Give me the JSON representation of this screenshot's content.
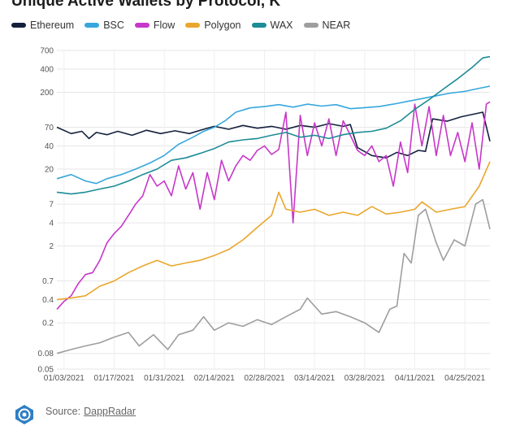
{
  "header": {
    "title": "Unique Active Wallets by Protocol, K"
  },
  "footer": {
    "source_label": "Source:",
    "source_name": "DappRadar"
  },
  "chart_data": {
    "type": "line",
    "title": "Unique Active Wallets by Protocol, K",
    "xlabel": "",
    "ylabel": "",
    "y_scale": "log",
    "ylim": [
      0.05,
      700
    ],
    "y_ticks": [
      700,
      400,
      200,
      70,
      40,
      20,
      7,
      4,
      2,
      0.7,
      0.4,
      0.2,
      0.08,
      0.05
    ],
    "x_tick_labels": [
      "01/03/2021",
      "01/17/2021",
      "01/31/2021",
      "02/14/2021",
      "02/28/2021",
      "03/14/2021",
      "03/28/2021",
      "04/11/2021",
      "04/25/2021"
    ],
    "x_start": "2021-01-01",
    "x_end": "2021-05-02",
    "grid": true,
    "legend_position": "top-left",
    "series": [
      {
        "name": "Ethereum",
        "color": "#14213d",
        "points": [
          [
            "2021-01-01",
            70
          ],
          [
            "2021-01-05",
            58
          ],
          [
            "2021-01-08",
            62
          ],
          [
            "2021-01-10",
            50
          ],
          [
            "2021-01-12",
            60
          ],
          [
            "2021-01-15",
            56
          ],
          [
            "2021-01-18",
            62
          ],
          [
            "2021-01-22",
            55
          ],
          [
            "2021-01-26",
            64
          ],
          [
            "2021-01-30",
            58
          ],
          [
            "2021-02-03",
            63
          ],
          [
            "2021-02-07",
            58
          ],
          [
            "2021-02-11",
            66
          ],
          [
            "2021-02-14",
            72
          ],
          [
            "2021-02-18",
            66
          ],
          [
            "2021-02-22",
            74
          ],
          [
            "2021-02-26",
            68
          ],
          [
            "2021-03-02",
            72
          ],
          [
            "2021-03-06",
            66
          ],
          [
            "2021-03-10",
            74
          ],
          [
            "2021-03-14",
            70
          ],
          [
            "2021-03-18",
            78
          ],
          [
            "2021-03-22",
            72
          ],
          [
            "2021-03-24",
            76
          ],
          [
            "2021-03-26",
            38
          ],
          [
            "2021-03-30",
            30
          ],
          [
            "2021-04-03",
            28
          ],
          [
            "2021-04-06",
            33
          ],
          [
            "2021-04-09",
            30
          ],
          [
            "2021-04-12",
            35
          ],
          [
            "2021-04-14",
            34
          ],
          [
            "2021-04-16",
            90
          ],
          [
            "2021-04-20",
            84
          ],
          [
            "2021-04-24",
            96
          ],
          [
            "2021-04-28",
            105
          ],
          [
            "2021-04-30",
            110
          ],
          [
            "2021-05-02",
            46
          ]
        ]
      },
      {
        "name": "BSC",
        "color": "#37a7dd",
        "points": [
          [
            "2021-01-01",
            15
          ],
          [
            "2021-01-05",
            17
          ],
          [
            "2021-01-09",
            14
          ],
          [
            "2021-01-12",
            13
          ],
          [
            "2021-01-15",
            15
          ],
          [
            "2021-01-19",
            17
          ],
          [
            "2021-01-23",
            20
          ],
          [
            "2021-01-27",
            24
          ],
          [
            "2021-01-31",
            30
          ],
          [
            "2021-02-04",
            42
          ],
          [
            "2021-02-08",
            52
          ],
          [
            "2021-02-11",
            62
          ],
          [
            "2021-02-14",
            70
          ],
          [
            "2021-02-17",
            85
          ],
          [
            "2021-02-20",
            110
          ],
          [
            "2021-02-24",
            125
          ],
          [
            "2021-02-28",
            130
          ],
          [
            "2021-03-04",
            138
          ],
          [
            "2021-03-08",
            128
          ],
          [
            "2021-03-12",
            140
          ],
          [
            "2021-03-16",
            132
          ],
          [
            "2021-03-20",
            138
          ],
          [
            "2021-03-24",
            122
          ],
          [
            "2021-03-28",
            126
          ],
          [
            "2021-04-01",
            130
          ],
          [
            "2021-04-05",
            140
          ],
          [
            "2021-04-09",
            152
          ],
          [
            "2021-04-13",
            165
          ],
          [
            "2021-04-17",
            180
          ],
          [
            "2021-04-21",
            195
          ],
          [
            "2021-04-25",
            205
          ],
          [
            "2021-04-29",
            225
          ],
          [
            "2021-05-02",
            240
          ]
        ]
      },
      {
        "name": "Flow",
        "color": "#c737c9",
        "points": [
          [
            "2021-01-01",
            0.3
          ],
          [
            "2021-01-03",
            0.38
          ],
          [
            "2021-01-05",
            0.45
          ],
          [
            "2021-01-07",
            0.65
          ],
          [
            "2021-01-09",
            0.85
          ],
          [
            "2021-01-11",
            0.9
          ],
          [
            "2021-01-13",
            1.3
          ],
          [
            "2021-01-15",
            2.2
          ],
          [
            "2021-01-17",
            2.9
          ],
          [
            "2021-01-19",
            3.6
          ],
          [
            "2021-01-21",
            5
          ],
          [
            "2021-01-23",
            7
          ],
          [
            "2021-01-25",
            9
          ],
          [
            "2021-01-27",
            17
          ],
          [
            "2021-01-29",
            12
          ],
          [
            "2021-01-31",
            14
          ],
          [
            "2021-02-02",
            9
          ],
          [
            "2021-02-04",
            22
          ],
          [
            "2021-02-06",
            11
          ],
          [
            "2021-02-08",
            18
          ],
          [
            "2021-02-10",
            6
          ],
          [
            "2021-02-12",
            18
          ],
          [
            "2021-02-14",
            8
          ],
          [
            "2021-02-16",
            26
          ],
          [
            "2021-02-18",
            14
          ],
          [
            "2021-02-20",
            22
          ],
          [
            "2021-02-22",
            30
          ],
          [
            "2021-02-24",
            26
          ],
          [
            "2021-02-26",
            35
          ],
          [
            "2021-02-28",
            40
          ],
          [
            "2021-03-02",
            31
          ],
          [
            "2021-03-04",
            36
          ],
          [
            "2021-03-06",
            110
          ],
          [
            "2021-03-08",
            4
          ],
          [
            "2021-03-10",
            100
          ],
          [
            "2021-03-12",
            30
          ],
          [
            "2021-03-14",
            80
          ],
          [
            "2021-03-16",
            40
          ],
          [
            "2021-03-18",
            90
          ],
          [
            "2021-03-20",
            30
          ],
          [
            "2021-03-22",
            85
          ],
          [
            "2021-03-24",
            55
          ],
          [
            "2021-03-26",
            35
          ],
          [
            "2021-03-28",
            30
          ],
          [
            "2021-03-30",
            40
          ],
          [
            "2021-04-01",
            25
          ],
          [
            "2021-04-03",
            30
          ],
          [
            "2021-04-05",
            12
          ],
          [
            "2021-04-07",
            45
          ],
          [
            "2021-04-09",
            18
          ],
          [
            "2021-04-11",
            140
          ],
          [
            "2021-04-13",
            40
          ],
          [
            "2021-04-15",
            130
          ],
          [
            "2021-04-17",
            30
          ],
          [
            "2021-04-19",
            100
          ],
          [
            "2021-04-21",
            30
          ],
          [
            "2021-04-23",
            60
          ],
          [
            "2021-04-25",
            25
          ],
          [
            "2021-04-27",
            80
          ],
          [
            "2021-04-29",
            20
          ],
          [
            "2021-05-01",
            140
          ],
          [
            "2021-05-02",
            150
          ]
        ]
      },
      {
        "name": "Polygon",
        "color": "#eaa62c",
        "points": [
          [
            "2021-01-01",
            0.4
          ],
          [
            "2021-01-05",
            0.42
          ],
          [
            "2021-01-09",
            0.45
          ],
          [
            "2021-01-13",
            0.6
          ],
          [
            "2021-01-17",
            0.7
          ],
          [
            "2021-01-21",
            0.9
          ],
          [
            "2021-01-25",
            1.1
          ],
          [
            "2021-01-29",
            1.3
          ],
          [
            "2021-02-02",
            1.1
          ],
          [
            "2021-02-06",
            1.2
          ],
          [
            "2021-02-10",
            1.3
          ],
          [
            "2021-02-14",
            1.5
          ],
          [
            "2021-02-18",
            1.8
          ],
          [
            "2021-02-22",
            2.4
          ],
          [
            "2021-02-26",
            3.5
          ],
          [
            "2021-03-02",
            5
          ],
          [
            "2021-03-04",
            10
          ],
          [
            "2021-03-06",
            6
          ],
          [
            "2021-03-10",
            5.5
          ],
          [
            "2021-03-14",
            6
          ],
          [
            "2021-03-18",
            5
          ],
          [
            "2021-03-22",
            5.5
          ],
          [
            "2021-03-26",
            5
          ],
          [
            "2021-03-30",
            6.5
          ],
          [
            "2021-04-03",
            5.2
          ],
          [
            "2021-04-07",
            5.5
          ],
          [
            "2021-04-11",
            6
          ],
          [
            "2021-04-13",
            7.5
          ],
          [
            "2021-04-17",
            5.5
          ],
          [
            "2021-04-21",
            6
          ],
          [
            "2021-04-25",
            6.5
          ],
          [
            "2021-04-29",
            12
          ],
          [
            "2021-05-02",
            25
          ]
        ]
      },
      {
        "name": "WAX",
        "color": "#1c8c96",
        "points": [
          [
            "2021-01-01",
            10
          ],
          [
            "2021-01-05",
            9.5
          ],
          [
            "2021-01-09",
            10
          ],
          [
            "2021-01-13",
            11
          ],
          [
            "2021-01-17",
            12
          ],
          [
            "2021-01-21",
            14
          ],
          [
            "2021-01-25",
            17
          ],
          [
            "2021-01-29",
            20
          ],
          [
            "2021-02-02",
            26
          ],
          [
            "2021-02-06",
            28
          ],
          [
            "2021-02-10",
            32
          ],
          [
            "2021-02-14",
            37
          ],
          [
            "2021-02-18",
            45
          ],
          [
            "2021-02-22",
            48
          ],
          [
            "2021-02-26",
            50
          ],
          [
            "2021-03-02",
            55
          ],
          [
            "2021-03-06",
            60
          ],
          [
            "2021-03-10",
            52
          ],
          [
            "2021-03-14",
            55
          ],
          [
            "2021-03-18",
            50
          ],
          [
            "2021-03-22",
            56
          ],
          [
            "2021-03-26",
            60
          ],
          [
            "2021-03-30",
            62
          ],
          [
            "2021-04-03",
            68
          ],
          [
            "2021-04-07",
            85
          ],
          [
            "2021-04-11",
            120
          ],
          [
            "2021-04-15",
            160
          ],
          [
            "2021-04-19",
            220
          ],
          [
            "2021-04-23",
            300
          ],
          [
            "2021-04-27",
            420
          ],
          [
            "2021-04-30",
            560
          ],
          [
            "2021-05-02",
            580
          ]
        ]
      },
      {
        "name": "NEAR",
        "color": "#9e9e9e",
        "points": [
          [
            "2021-01-01",
            0.08
          ],
          [
            "2021-01-05",
            0.09
          ],
          [
            "2021-01-09",
            0.1
          ],
          [
            "2021-01-13",
            0.11
          ],
          [
            "2021-01-17",
            0.13
          ],
          [
            "2021-01-21",
            0.15
          ],
          [
            "2021-01-24",
            0.1
          ],
          [
            "2021-01-28",
            0.14
          ],
          [
            "2021-02-01",
            0.09
          ],
          [
            "2021-02-04",
            0.14
          ],
          [
            "2021-02-08",
            0.16
          ],
          [
            "2021-02-11",
            0.24
          ],
          [
            "2021-02-14",
            0.16
          ],
          [
            "2021-02-18",
            0.2
          ],
          [
            "2021-02-22",
            0.18
          ],
          [
            "2021-02-26",
            0.22
          ],
          [
            "2021-03-02",
            0.19
          ],
          [
            "2021-03-06",
            0.24
          ],
          [
            "2021-03-10",
            0.3
          ],
          [
            "2021-03-12",
            0.42
          ],
          [
            "2021-03-16",
            0.26
          ],
          [
            "2021-03-20",
            0.28
          ],
          [
            "2021-03-24",
            0.24
          ],
          [
            "2021-03-28",
            0.2
          ],
          [
            "2021-04-01",
            0.15
          ],
          [
            "2021-04-04",
            0.3
          ],
          [
            "2021-04-06",
            0.33
          ],
          [
            "2021-04-08",
            1.6
          ],
          [
            "2021-04-10",
            1.2
          ],
          [
            "2021-04-12",
            5
          ],
          [
            "2021-04-14",
            6
          ],
          [
            "2021-04-17",
            2.2
          ],
          [
            "2021-04-19",
            1.3
          ],
          [
            "2021-04-22",
            2.4
          ],
          [
            "2021-04-25",
            2
          ],
          [
            "2021-04-28",
            7
          ],
          [
            "2021-04-30",
            8
          ],
          [
            "2021-05-02",
            3.3
          ]
        ]
      }
    ]
  }
}
